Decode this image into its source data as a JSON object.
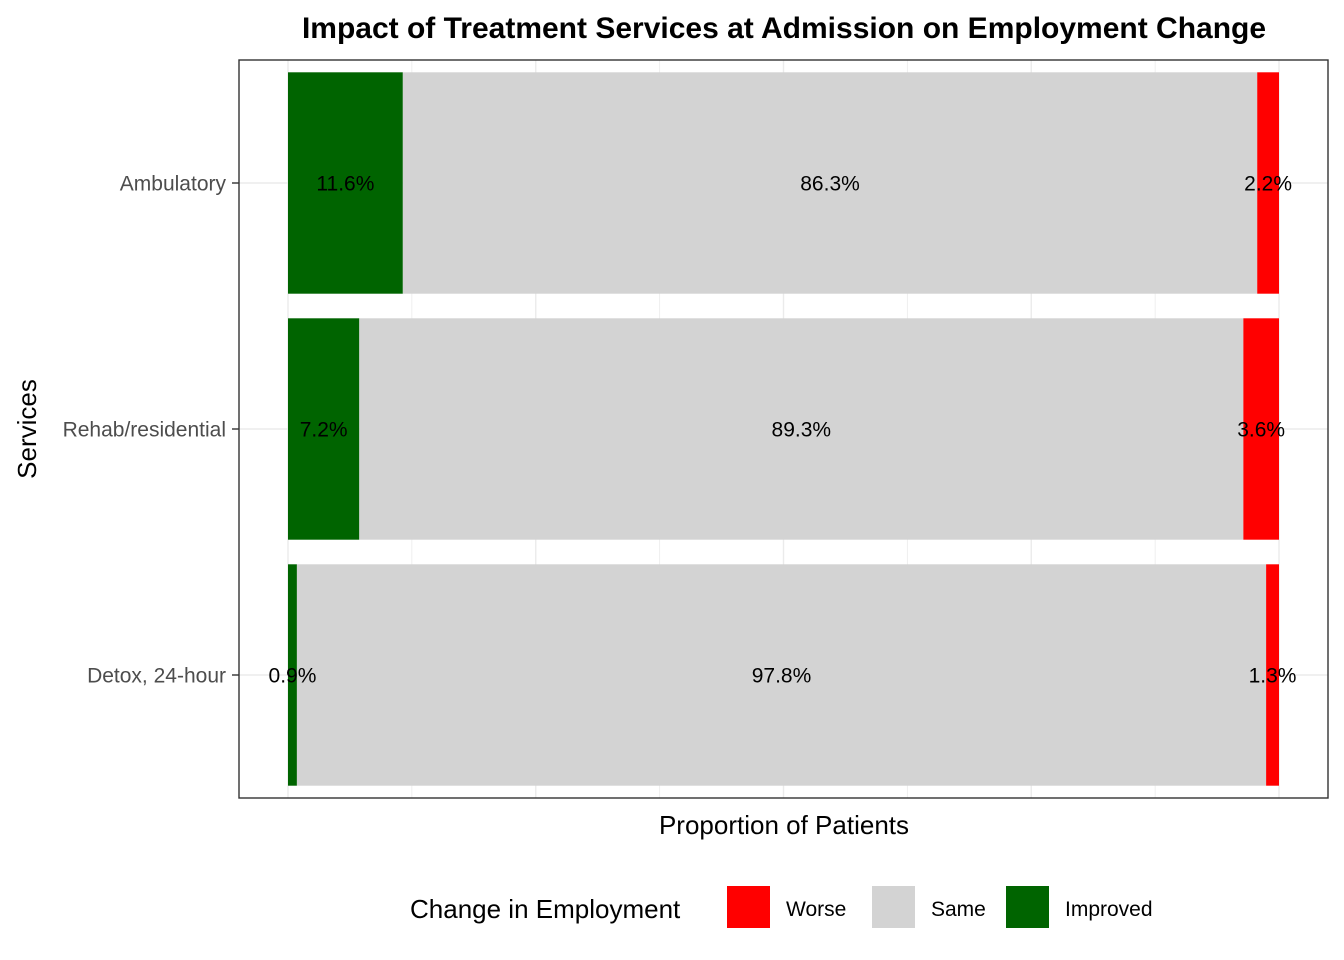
{
  "chart_data": {
    "type": "bar",
    "orientation": "horizontal",
    "stacked": true,
    "title": "Impact of Treatment Services at Admission on Employment Change",
    "xlabel": "Proportion of Patients",
    "ylabel": "Services",
    "xlim": [
      0,
      1
    ],
    "grid": true,
    "legend_position": "bottom",
    "categories": [
      "Ambulatory",
      "Rehab/residential",
      "Detox, 24-hour"
    ],
    "series": [
      {
        "name": "Improved",
        "color": "#006400",
        "values": [
          0.116,
          0.072,
          0.009
        ],
        "labels": [
          "11.6%",
          "7.2%",
          "0.9%"
        ]
      },
      {
        "name": "Same",
        "color": "#d3d3d3",
        "values": [
          0.863,
          0.893,
          0.978
        ],
        "labels": [
          "86.3%",
          "89.3%",
          "97.8%"
        ]
      },
      {
        "name": "Worse",
        "color": "#ff0000",
        "values": [
          0.022,
          0.036,
          0.013
        ],
        "labels": [
          "2.2%",
          "3.6%",
          "1.3%"
        ]
      }
    ],
    "legend": {
      "title": "Change in Employment",
      "order": [
        "Worse",
        "Same",
        "Improved"
      ]
    }
  }
}
